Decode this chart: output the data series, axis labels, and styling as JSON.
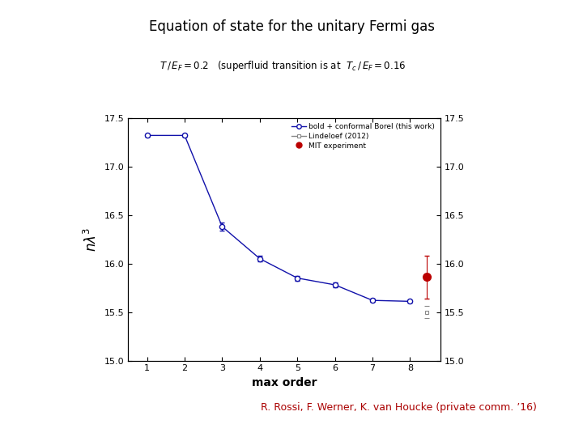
{
  "title": "Equation of state for the unitary Fermi gas",
  "attribution": "R. Rossi, F. Werner, K. van Houcke (private comm. ’16)",
  "xlabel": "max order",
  "ylim": [
    15.0,
    17.5
  ],
  "xlim": [
    0.5,
    8.8
  ],
  "yticks": [
    15.0,
    15.5,
    16.0,
    16.5,
    17.0,
    17.5
  ],
  "xticks": [
    1,
    2,
    3,
    4,
    5,
    6,
    7,
    8
  ],
  "borel_x": [
    1,
    2,
    3,
    4,
    5,
    6,
    7,
    8
  ],
  "borel_y": [
    17.32,
    17.32,
    16.38,
    16.05,
    15.85,
    15.78,
    15.62,
    15.61
  ],
  "borel_yerr": [
    0.015,
    0.015,
    0.04,
    0.03,
    0.025,
    0.025,
    0.015,
    0.015
  ],
  "borel_color": "#1111aa",
  "lindeloef_x": 8.45,
  "lindeloef_y": 15.5,
  "lindeloef_yerr": 0.06,
  "lindeloef_color": "#888888",
  "mit_x": 8.45,
  "mit_y": 15.86,
  "mit_yerr_lo": 0.22,
  "mit_yerr_hi": 0.22,
  "mit_color": "#bb0000",
  "legend_borel": "bold + conformal Borel (this work)",
  "legend_lindeloef": "Lindeloef (2012)",
  "legend_mit": "MIT experiment",
  "background_color": "#ffffff",
  "attribution_color": "#aa0000"
}
